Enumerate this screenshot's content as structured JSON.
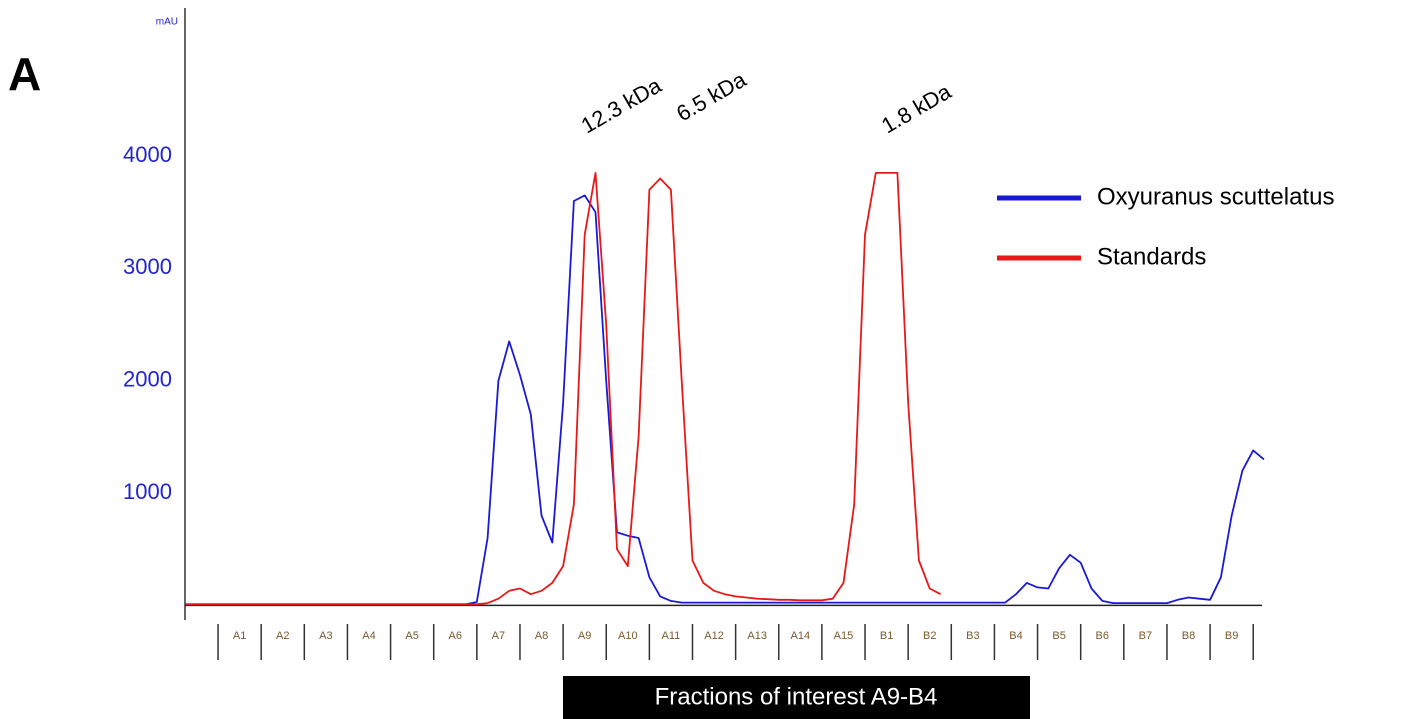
{
  "chart_data": {
    "type": "line",
    "panel_label": "A",
    "y_unit": "mAU",
    "x_label": "Fractions of interest A9-B4",
    "annotations": [
      "12.3 kDa",
      "6.5 kDa",
      "1.8 kDa"
    ],
    "legend": "top-right",
    "ylim": [
      -130,
      5300
    ],
    "yticks": [
      1000,
      2000,
      3000,
      4000
    ],
    "categories": [
      null,
      null,
      null,
      null,
      null,
      "A1",
      null,
      null,
      null,
      "A2",
      null,
      null,
      null,
      "A3",
      null,
      null,
      null,
      "A4",
      null,
      null,
      null,
      "A5",
      null,
      null,
      null,
      "A6",
      null,
      null,
      null,
      "A7",
      null,
      null,
      null,
      "A8",
      null,
      null,
      null,
      "A9",
      null,
      null,
      null,
      "A10",
      null,
      null,
      null,
      "A11",
      null,
      null,
      null,
      "A12",
      null,
      null,
      null,
      "A13",
      null,
      null,
      null,
      "A14",
      null,
      null,
      null,
      "A15",
      null,
      null,
      null,
      "B1",
      null,
      null,
      null,
      "B2",
      null,
      null,
      null,
      "B3",
      null,
      null,
      null,
      "B4",
      null,
      null,
      null,
      "B5",
      null,
      null,
      null,
      "B6",
      null,
      null,
      null,
      "B7",
      null,
      null,
      null,
      "B8",
      null,
      null,
      null,
      "B9",
      null,
      null,
      null
    ],
    "series": [
      {
        "name": "Oxyuranus scuttelatus",
        "color": "#1a1ad6",
        "values": [
          10,
          10,
          10,
          10,
          10,
          10,
          10,
          10,
          10,
          10,
          10,
          10,
          10,
          10,
          10,
          10,
          10,
          10,
          10,
          10,
          10,
          10,
          10,
          10,
          10,
          10,
          10,
          30,
          600,
          2000,
          2350,
          2050,
          1700,
          800,
          560,
          1800,
          3600,
          3650,
          3500,
          2000,
          650,
          620,
          600,
          250,
          80,
          40,
          25,
          25,
          25,
          25,
          25,
          25,
          25,
          25,
          25,
          25,
          25,
          25,
          25,
          25,
          25,
          25,
          25,
          25,
          25,
          25,
          25,
          25,
          25,
          25,
          25,
          25,
          25,
          25,
          25,
          25,
          25,
          100,
          200,
          160,
          150,
          330,
          450,
          380,
          150,
          40,
          20,
          20,
          20,
          20,
          20,
          20,
          50,
          70,
          60,
          50,
          250,
          800,
          1200,
          1380,
          1300
        ]
      },
      {
        "name": "Standards",
        "color": "#e81818",
        "values": [
          10,
          10,
          10,
          10,
          10,
          10,
          10,
          10,
          10,
          10,
          10,
          10,
          10,
          10,
          10,
          10,
          10,
          10,
          10,
          10,
          10,
          10,
          10,
          10,
          10,
          10,
          10,
          10,
          20,
          60,
          130,
          150,
          100,
          130,
          200,
          350,
          900,
          3300,
          3850,
          2500,
          500,
          350,
          1500,
          3700,
          3800,
          3700,
          2000,
          400,
          200,
          130,
          100,
          80,
          70,
          60,
          55,
          50,
          50,
          45,
          45,
          45,
          60,
          200,
          900,
          3300,
          3850,
          3850,
          3850,
          1800,
          400,
          150,
          100,
          null,
          null,
          null,
          null,
          null,
          null,
          null,
          null,
          null,
          null,
          null,
          null,
          null,
          null,
          null,
          null,
          null,
          null,
          null,
          null,
          null,
          null,
          null,
          null,
          null,
          null,
          null,
          null,
          null,
          null
        ]
      }
    ]
  }
}
